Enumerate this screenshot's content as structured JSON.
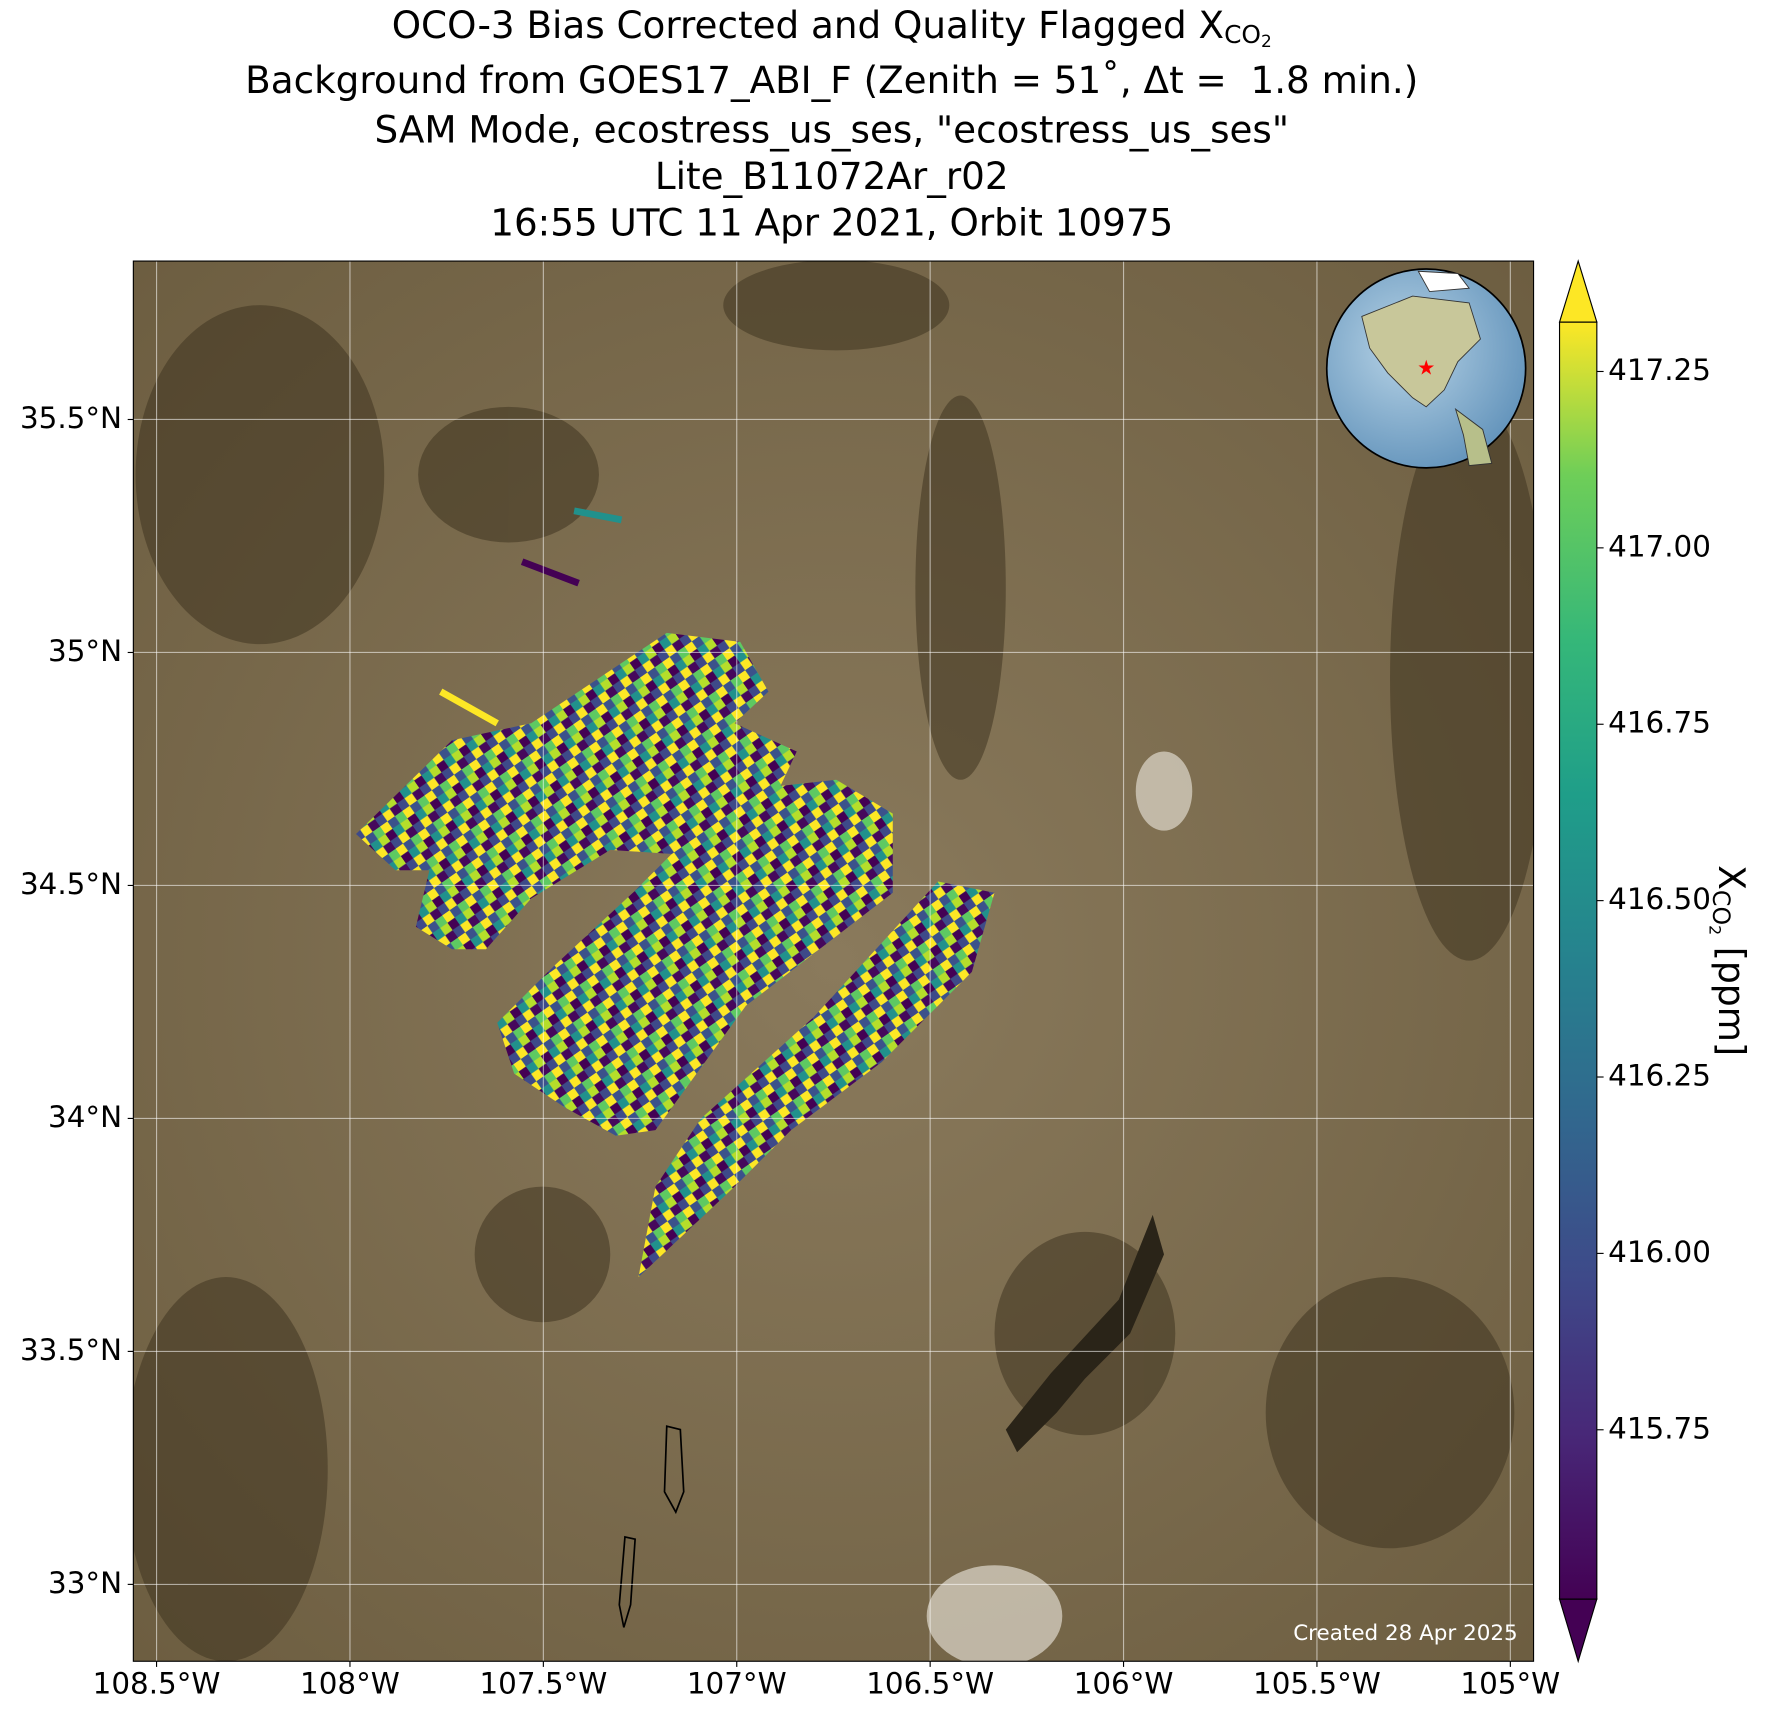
{
  "chart_data": {
    "type": "map",
    "title": {
      "line1": {
        "text": "OCO-3 Bias Corrected and Quality Flagged X",
        "sub": "CO",
        "subsub": "2"
      },
      "lines": [
        "Background from GOES17_ABI_F (Zenith = 51˚, Δt =  1.8 min.)",
        "SAM Mode, ecostress_us_ses, \"ecostress_us_ses\"",
        "Lite_B11072Ar_r02",
        "16:55 UTC 11 Apr 2021, Orbit 10975"
      ]
    },
    "xlim": [
      -108.56,
      -104.94
    ],
    "ylim": [
      32.835,
      35.84
    ],
    "xticks": [
      {
        "value": -108.5,
        "label": "108.5°W"
      },
      {
        "value": -108,
        "label": "108°W"
      },
      {
        "value": -107.5,
        "label": "107.5°W"
      },
      {
        "value": -107,
        "label": "107°W"
      },
      {
        "value": -106.5,
        "label": "106.5°W"
      },
      {
        "value": -106,
        "label": "106°W"
      },
      {
        "value": -105.5,
        "label": "105.5°W"
      },
      {
        "value": -105,
        "label": "105°W"
      }
    ],
    "yticks": [
      {
        "value": 33,
        "label": "33°N"
      },
      {
        "value": 33.5,
        "label": "33.5°N"
      },
      {
        "value": 34,
        "label": "34°N"
      },
      {
        "value": 34.5,
        "label": "34.5°N"
      },
      {
        "value": 35,
        "label": "35°N"
      },
      {
        "value": 35.5,
        "label": "35.5°N"
      }
    ],
    "grid": true,
    "colorbar": {
      "lim": [
        415.51,
        417.32
      ],
      "ticks": [
        415.75,
        {
          "value": 416,
          "label": "416.00"
        },
        416.25,
        {
          "value": 416.5,
          "label": "416.50"
        },
        416.75,
        {
          "value": 417,
          "label": "417.00"
        },
        417.25
      ],
      "label": {
        "text": "X",
        "sub": "CO",
        "subsub": "2",
        "unit": " [ppm]"
      },
      "colormap": "viridis"
    },
    "footnote": "Created 28 Apr 2025"
  }
}
